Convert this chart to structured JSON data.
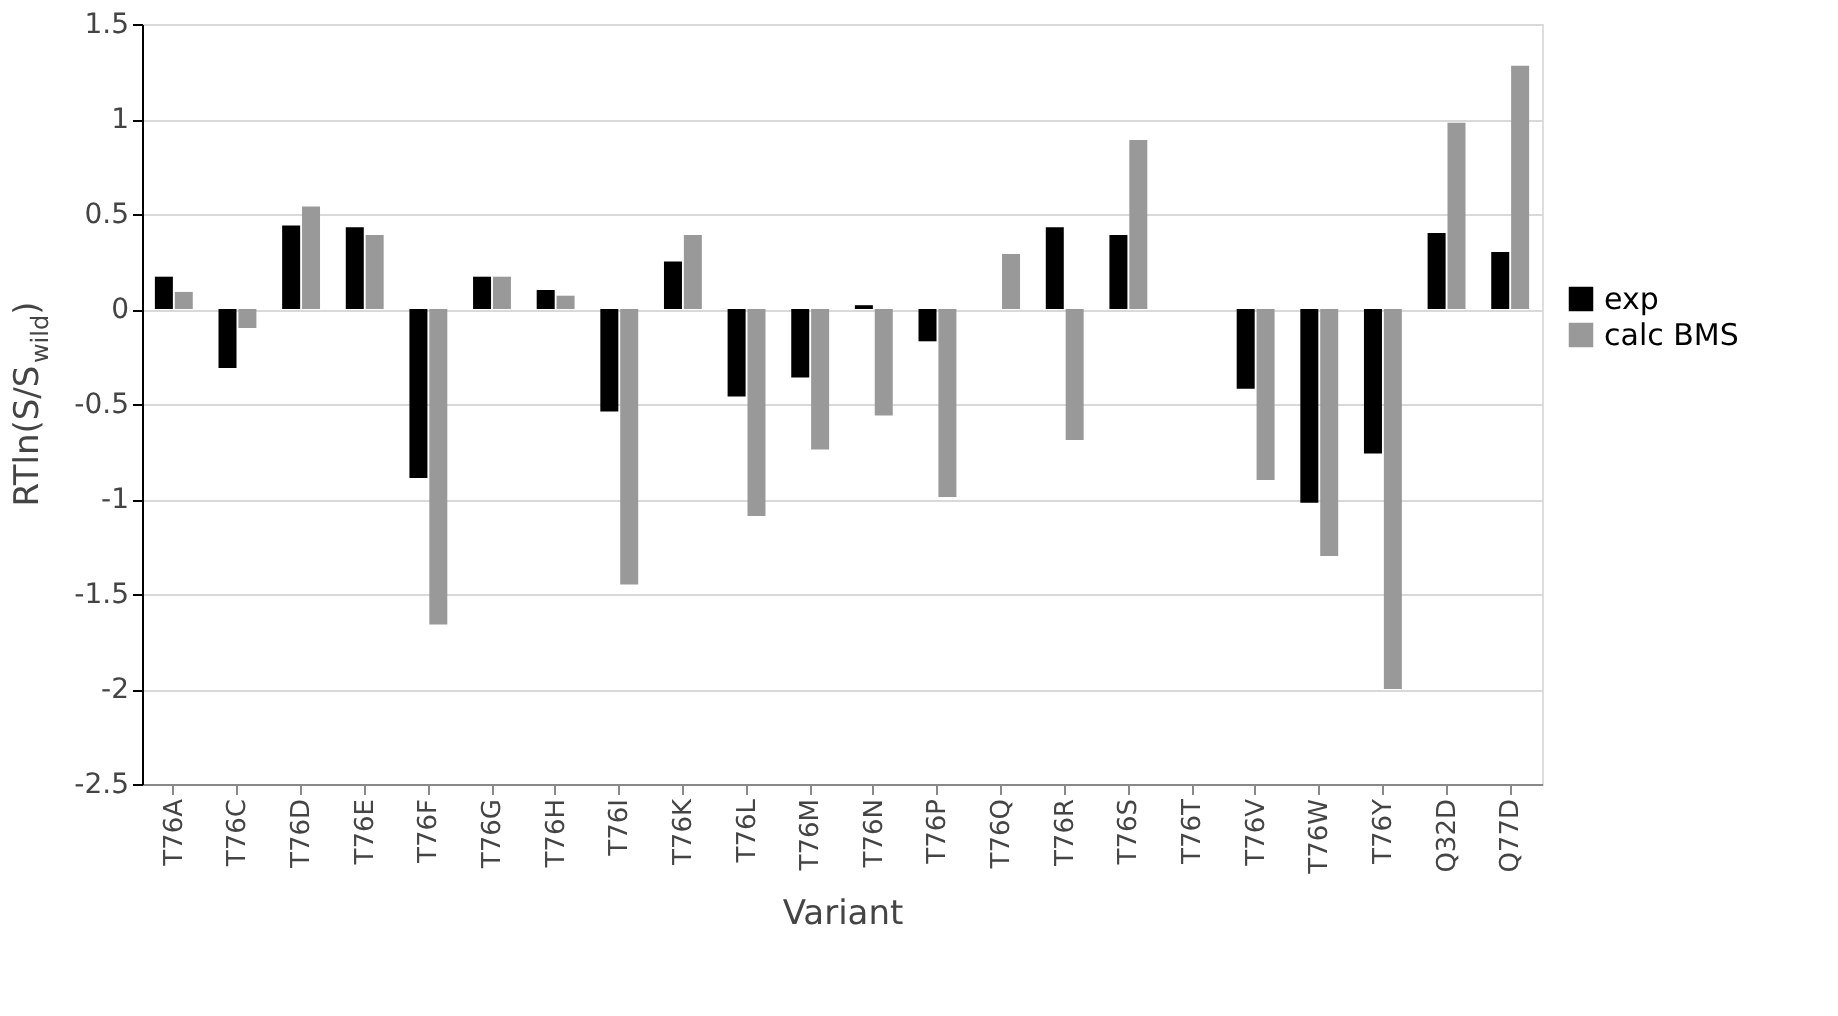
{
  "chart_data": {
    "type": "bar",
    "xlabel": "Variant",
    "ylabel": "RTln(S/S$_{wild}$)",
    "categories": [
      "T76A",
      "T76C",
      "T76D",
      "T76E",
      "T76F",
      "T76G",
      "T76H",
      "T76I",
      "T76K",
      "T76L",
      "T76M",
      "T76N",
      "T76P",
      "T76Q",
      "T76R",
      "T76S",
      "T76T",
      "T76V",
      "T76W",
      "T76Y",
      "Q32D",
      "Q77D"
    ],
    "series": [
      {
        "name": "exp",
        "color": "#000000",
        "values": [
          0.17,
          -0.31,
          0.44,
          0.43,
          -0.89,
          0.17,
          0.1,
          -0.54,
          0.25,
          -0.46,
          -0.36,
          0.02,
          -0.17,
          null,
          0.43,
          0.39,
          null,
          -0.42,
          -1.02,
          -0.76,
          0.4,
          0.3
        ]
      },
      {
        "name": "calc BMS",
        "color": "#999999",
        "values": [
          0.09,
          -0.1,
          0.54,
          0.39,
          -1.66,
          0.17,
          0.07,
          -1.45,
          0.39,
          -1.09,
          -0.74,
          -0.56,
          -0.99,
          0.29,
          -0.69,
          0.89,
          null,
          -0.9,
          -1.3,
          -2.0,
          0.98,
          1.28
        ]
      }
    ],
    "ylim": [
      -2.5,
      1.5
    ],
    "yticks": [
      -2.5,
      -2,
      -1.5,
      -1,
      -0.5,
      0,
      0.5,
      1,
      1.5
    ],
    "grid": "y",
    "legend": "right"
  }
}
